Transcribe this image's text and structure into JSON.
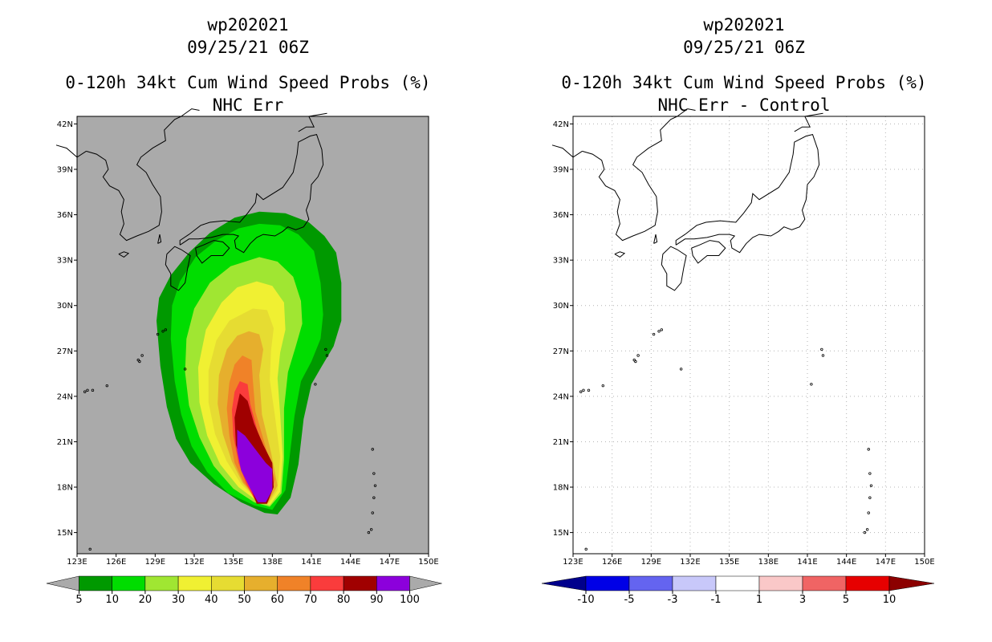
{
  "chart_data": [
    {
      "type": "heatmap",
      "storm_id": "wp202021",
      "datetime": "09/25/21 06Z",
      "title": "0-120h 34kt Cum Wind Speed Probs (%)",
      "subtitle": "NHC Err",
      "background": "#aaaaaa",
      "lon_ticks": [
        "123E",
        "126E",
        "129E",
        "132E",
        "135E",
        "138E",
        "141E",
        "144E",
        "147E",
        "150E"
      ],
      "lat_ticks": [
        "42N",
        "39N",
        "36N",
        "33N",
        "30N",
        "27N",
        "24N",
        "21N",
        "18N",
        "15N"
      ],
      "lon_range": [
        123,
        150
      ],
      "lat_range": [
        13.6,
        42.5
      ],
      "grid": false,
      "colorbar": {
        "labels": [
          "5",
          "10",
          "20",
          "30",
          "40",
          "50",
          "60",
          "70",
          "80",
          "90",
          "100"
        ],
        "colors": [
          "#009900",
          "#00dd00",
          "#a0e632",
          "#f0f032",
          "#e6dc32",
          "#e6af2d",
          "#f08228",
          "#fa3c3c",
          "#a00000",
          "#8c00dc"
        ],
        "end_color": "#aaaaaa"
      },
      "probability_contours": [
        {
          "level": 5,
          "lon": [
            138.2,
            141.5,
            142.8,
            143.8,
            143.2,
            142.5,
            141.8,
            140.6,
            140.0,
            139.5,
            138.0,
            137.0,
            135.2,
            132.5,
            130.5,
            129.5,
            129.0,
            129.0,
            129.6,
            130.4,
            131.5,
            133.0,
            134.8,
            136.5
          ]
        },
        {
          "level": 10,
          "lat": [
            35.0,
            33.5,
            31.5,
            28.5,
            26.0,
            24.0,
            21.5,
            18.6,
            16.7
          ]
        }
      ]
    },
    {
      "type": "heatmap",
      "storm_id": "wp202021",
      "datetime": "09/25/21 06Z",
      "title": "0-120h 34kt Cum Wind Speed Probs (%)",
      "subtitle": "NHC Err - Control",
      "background": "#ffffff",
      "lon_ticks": [
        "123E",
        "126E",
        "129E",
        "132E",
        "135E",
        "138E",
        "141E",
        "144E",
        "147E",
        "150E"
      ],
      "lat_ticks": [
        "42N",
        "39N",
        "36N",
        "33N",
        "30N",
        "27N",
        "24N",
        "21N",
        "18N",
        "15N"
      ],
      "lon_range": [
        123,
        150
      ],
      "lat_range": [
        13.6,
        42.5
      ],
      "grid": true,
      "colorbar": {
        "labels": [
          "-10",
          "-5",
          "-3",
          "-1",
          "1",
          "3",
          "5",
          "10"
        ],
        "colors": [
          "#0000e6",
          "#6464f0",
          "#c8c8fa",
          "#ffffff",
          "#fac8c8",
          "#f06464",
          "#e60000"
        ],
        "low_end_color": "#00008c",
        "high_end_color": "#8c0000"
      }
    }
  ]
}
